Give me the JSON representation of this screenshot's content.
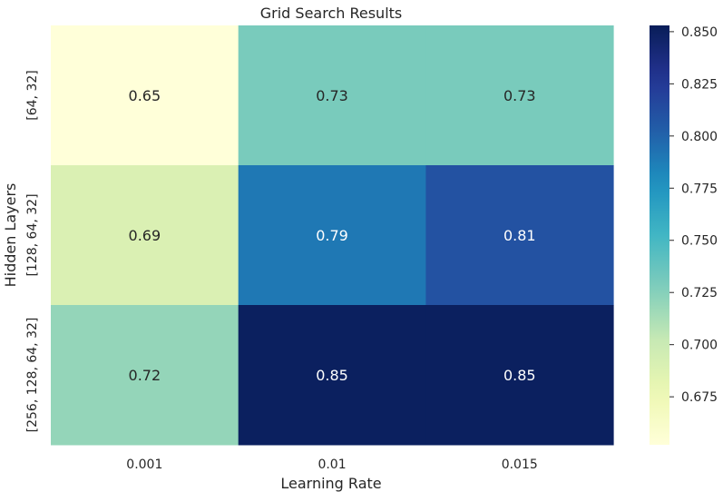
{
  "chart_data": {
    "type": "heatmap",
    "title": "Grid Search Results",
    "xlabel": "Learning Rate",
    "ylabel": "Hidden Layers",
    "x_categories": [
      "0.001",
      "0.01",
      "0.015"
    ],
    "y_categories": [
      "[64, 32]",
      "[128, 64, 32]",
      "[256, 128, 64, 32]"
    ],
    "values": [
      [
        0.65,
        0.73,
        0.73
      ],
      [
        0.69,
        0.79,
        0.81
      ],
      [
        0.72,
        0.85,
        0.85
      ]
    ],
    "cell_labels": [
      [
        "0.65",
        "0.73",
        "0.73"
      ],
      [
        "0.69",
        "0.79",
        "0.81"
      ],
      [
        "0.72",
        "0.85",
        "0.85"
      ]
    ],
    "colormap": "YlGnBu",
    "colorbar": {
      "vmin": 0.652,
      "vmax": 0.853,
      "ticks": [
        0.675,
        0.7,
        0.725,
        0.75,
        0.775,
        0.8,
        0.825,
        0.85
      ],
      "tick_labels": [
        "0.675",
        "0.700",
        "0.725",
        "0.750",
        "0.775",
        "0.800",
        "0.825",
        "0.850"
      ]
    }
  }
}
